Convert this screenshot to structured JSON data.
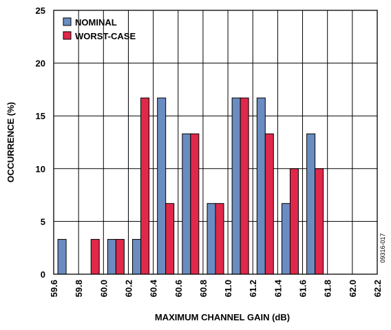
{
  "chart_data": {
    "type": "bar",
    "title": "",
    "xlabel": "MAXIMUM CHANNEL GAIN (dB)",
    "ylabel": "OCCURRENCE (%)",
    "ylim": [
      0,
      25
    ],
    "yticks": [
      "0",
      "5",
      "10",
      "15",
      "20",
      "25"
    ],
    "xlim": [
      59.6,
      62.2
    ],
    "xticks": [
      "59.6",
      "59.8",
      "60.0",
      "60.2",
      "60.4",
      "60.6",
      "60.8",
      "61.0",
      "61.2",
      "61.4",
      "61.6",
      "61.8",
      "62.0",
      "62.2"
    ],
    "categories": [
      "59.6-59.8",
      "59.8-60.0",
      "60.0-60.2",
      "60.2-60.4",
      "60.4-60.6",
      "60.6-60.8",
      "60.8-61.0",
      "61.0-61.2",
      "61.2-61.4",
      "61.4-61.6",
      "61.6-61.8",
      "61.8-62.0",
      "62.0-62.2"
    ],
    "series": [
      {
        "name": "NOMINAL",
        "color": "#6a8cc0",
        "values": [
          3.3,
          0,
          3.3,
          3.3,
          16.7,
          13.3,
          6.7,
          16.7,
          16.7,
          6.7,
          13.3,
          0,
          0
        ]
      },
      {
        "name": "WORST-CASE",
        "color": "#e0284a",
        "values": [
          0,
          3.3,
          3.3,
          16.7,
          6.7,
          13.3,
          6.7,
          16.7,
          13.3,
          10,
          10,
          0,
          0
        ]
      }
    ],
    "grid": true,
    "legend_position": "top-left",
    "figure_id": "09316-017"
  }
}
